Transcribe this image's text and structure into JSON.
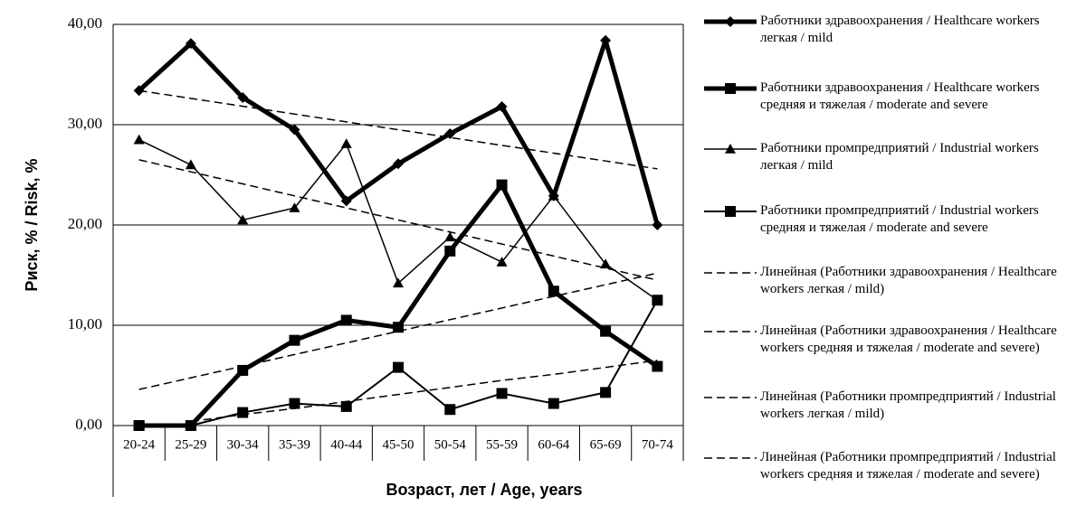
{
  "chart_data": {
    "type": "line",
    "y_label": "Риск, % / Risk, %",
    "x_label": "Возраст, лет / Age, years",
    "categories": [
      "20-24",
      "25-29",
      "30-34",
      "35-39",
      "40-44",
      "45-50",
      "50-54",
      "55-59",
      "60-64",
      "65-69",
      "70-74"
    ],
    "ylim": [
      0,
      40
    ],
    "yticks": [
      {
        "value": 0,
        "label": "0,00"
      },
      {
        "value": 10,
        "label": "10,00"
      },
      {
        "value": 20,
        "label": "20,00"
      },
      {
        "value": 30,
        "label": "30,00"
      },
      {
        "value": 40,
        "label": "40,00"
      }
    ],
    "grid": true,
    "legend": "right",
    "series": [
      {
        "name": "Работники здравоохранения / Healthcare workers легкая / mild",
        "color": "#000000",
        "line_width": 5,
        "marker": "diamond",
        "values": [
          33.4,
          38.1,
          32.7,
          29.5,
          22.4,
          26.1,
          29.1,
          31.8,
          22.9,
          38.4,
          20.0
        ]
      },
      {
        "name": "Работники здравоохранения / Healthcare workers средняя и тяжелая / moderate and severe",
        "color": "#000000",
        "line_width": 5,
        "marker": "square",
        "values": [
          0,
          0,
          5.5,
          8.5,
          10.5,
          9.8,
          17.4,
          24.0,
          13.4,
          9.4,
          5.9
        ]
      },
      {
        "name": "Работники промпредприятий / Industrial workers легкая / mild",
        "color": "#000000",
        "line_width": 1.5,
        "marker": "triangle",
        "values": [
          28.5,
          26.0,
          20.5,
          21.7,
          28.1,
          14.2,
          18.8,
          16.3,
          22.9,
          16.1,
          12.5
        ]
      },
      {
        "name": "Работники промпредприятий / Industrial workers средняя и тяжелая / moderate and severe",
        "color": "#000000",
        "line_width": 2,
        "marker": "square",
        "values": [
          0,
          0,
          1.3,
          2.2,
          1.9,
          5.8,
          1.6,
          3.2,
          2.2,
          3.3,
          12.5
        ]
      },
      {
        "name": "Линейная (Работники здравоохранения / Healthcare workers легкая / mild)",
        "color": "#000000",
        "line_width": 1.5,
        "dashed": true,
        "values": [
          33.4,
          32.62,
          31.84,
          31.06,
          30.28,
          29.5,
          28.72,
          27.94,
          27.16,
          26.38,
          25.6
        ]
      },
      {
        "name": "Линейная (Работники здравоохранения / Healthcare workers средняя и тяжелая / moderate and severe)",
        "color": "#000000",
        "line_width": 1.5,
        "dashed": true,
        "values": [
          3.6,
          4.76,
          5.92,
          7.08,
          8.24,
          9.4,
          10.56,
          11.72,
          12.88,
          14.04,
          15.2
        ]
      },
      {
        "name": "Линейная (Работники промпредприятий / Industrial workers легкая / mild)",
        "color": "#000000",
        "line_width": 1.5,
        "dashed": true,
        "values": [
          26.5,
          25.3,
          24.1,
          22.9,
          21.7,
          20.5,
          19.3,
          18.1,
          16.9,
          15.7,
          14.5
        ]
      },
      {
        "name": "Линейная (Работники промпредприятий / Industrial workers средняя и тяжелая / moderate and severe)",
        "color": "#000000",
        "line_width": 1.5,
        "dashed": true,
        "values": [
          null,
          0.4,
          1.1,
          1.7,
          2.4,
          3.1,
          3.8,
          4.5,
          5.1,
          5.8,
          6.5
        ]
      }
    ]
  }
}
